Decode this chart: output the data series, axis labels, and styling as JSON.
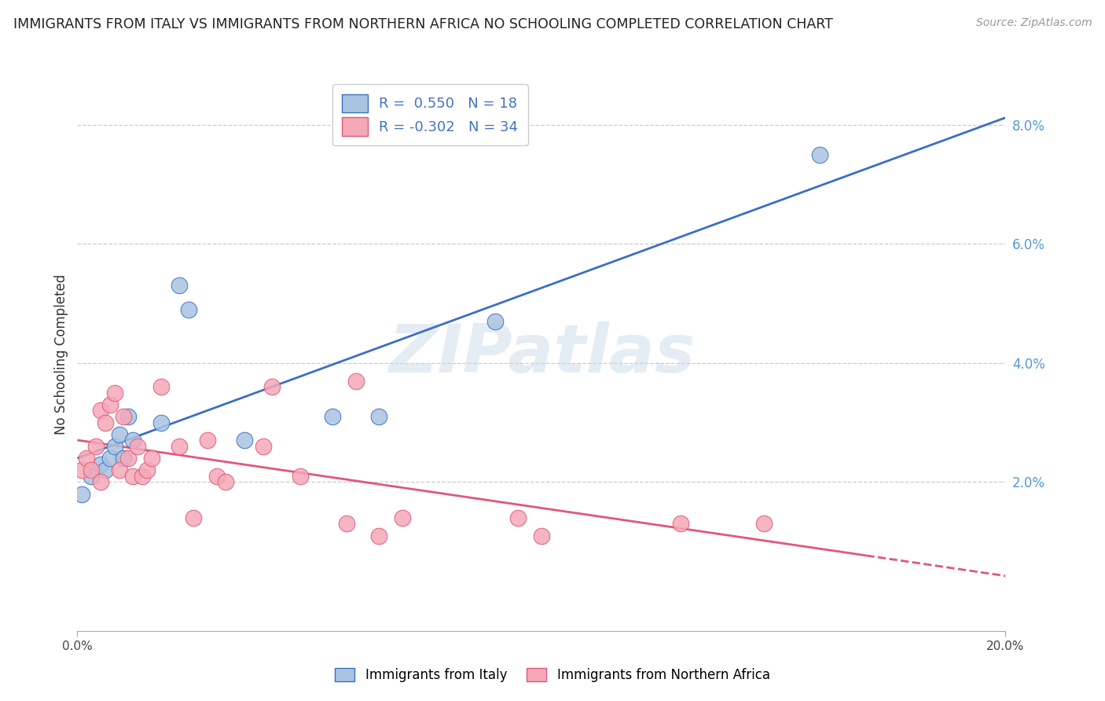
{
  "title": "IMMIGRANTS FROM ITALY VS IMMIGRANTS FROM NORTHERN AFRICA NO SCHOOLING COMPLETED CORRELATION CHART",
  "source": "Source: ZipAtlas.com",
  "ylabel": "No Schooling Completed",
  "xlim": [
    0,
    0.2
  ],
  "ylim": [
    -0.005,
    0.088
  ],
  "ytick_vals": [
    0.02,
    0.04,
    0.06,
    0.08
  ],
  "blue_scatter": [
    [
      0.001,
      0.018
    ],
    [
      0.003,
      0.021
    ],
    [
      0.005,
      0.023
    ],
    [
      0.006,
      0.022
    ],
    [
      0.007,
      0.024
    ],
    [
      0.008,
      0.026
    ],
    [
      0.009,
      0.028
    ],
    [
      0.01,
      0.024
    ],
    [
      0.011,
      0.031
    ],
    [
      0.012,
      0.027
    ],
    [
      0.018,
      0.03
    ],
    [
      0.022,
      0.053
    ],
    [
      0.024,
      0.049
    ],
    [
      0.036,
      0.027
    ],
    [
      0.055,
      0.031
    ],
    [
      0.065,
      0.031
    ],
    [
      0.09,
      0.047
    ],
    [
      0.16,
      0.075
    ]
  ],
  "pink_scatter": [
    [
      0.001,
      0.022
    ],
    [
      0.002,
      0.024
    ],
    [
      0.003,
      0.022
    ],
    [
      0.004,
      0.026
    ],
    [
      0.005,
      0.02
    ],
    [
      0.005,
      0.032
    ],
    [
      0.006,
      0.03
    ],
    [
      0.007,
      0.033
    ],
    [
      0.008,
      0.035
    ],
    [
      0.009,
      0.022
    ],
    [
      0.01,
      0.031
    ],
    [
      0.011,
      0.024
    ],
    [
      0.012,
      0.021
    ],
    [
      0.013,
      0.026
    ],
    [
      0.014,
      0.021
    ],
    [
      0.015,
      0.022
    ],
    [
      0.016,
      0.024
    ],
    [
      0.018,
      0.036
    ],
    [
      0.022,
      0.026
    ],
    [
      0.025,
      0.014
    ],
    [
      0.028,
      0.027
    ],
    [
      0.03,
      0.021
    ],
    [
      0.032,
      0.02
    ],
    [
      0.04,
      0.026
    ],
    [
      0.042,
      0.036
    ],
    [
      0.048,
      0.021
    ],
    [
      0.058,
      0.013
    ],
    [
      0.06,
      0.037
    ],
    [
      0.065,
      0.011
    ],
    [
      0.07,
      0.014
    ],
    [
      0.095,
      0.014
    ],
    [
      0.1,
      0.011
    ],
    [
      0.13,
      0.013
    ],
    [
      0.148,
      0.013
    ]
  ],
  "blue_R": 0.55,
  "blue_N": 18,
  "pink_R": -0.302,
  "pink_N": 34,
  "blue_color": "#a8c4e0",
  "pink_color": "#f4a8b8",
  "blue_line_color": "#3c6fc4",
  "pink_line_color": "#e05878",
  "watermark_text": "ZIPatlas",
  "background_color": "#ffffff",
  "grid_color": "#cccccc",
  "ytick_color": "#5599cc",
  "title_color": "#222222",
  "source_color": "#999999"
}
